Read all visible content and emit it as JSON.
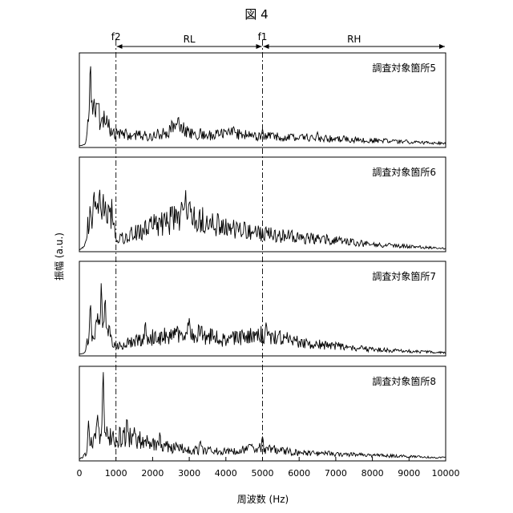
{
  "chart_data": {
    "type": "line",
    "title": "図 4",
    "xlabel": "周波数 (Hz)",
    "ylabel": "振幅 (a.u.)",
    "xlim": [
      0,
      10000
    ],
    "x_ticks": [
      "0",
      "1000",
      "2000",
      "3000",
      "4000",
      "5000",
      "6000",
      "7000",
      "8000",
      "9000",
      "10000"
    ],
    "markers": [
      {
        "label": "f2",
        "x": 1000
      },
      {
        "label": "f1",
        "x": 5000
      }
    ],
    "bands": [
      {
        "label": "RL",
        "range": [
          1000,
          5000
        ]
      },
      {
        "label": "RH",
        "range": [
          5000,
          10000
        ]
      }
    ],
    "panels": [
      {
        "label": "調査対象箇所5",
        "peaks": [
          [
            300,
            0.98
          ],
          [
            400,
            0.6
          ],
          [
            500,
            0.5
          ],
          [
            600,
            0.3
          ],
          [
            2700,
            0.38
          ],
          [
            3300,
            0.22
          ],
          [
            4200,
            0.25
          ],
          [
            5000,
            0.2
          ],
          [
            6500,
            0.18
          ]
        ],
        "envelope": [
          [
            0,
            0.0
          ],
          [
            150,
            0.02
          ],
          [
            300,
            0.4
          ],
          [
            600,
            0.35
          ],
          [
            1000,
            0.15
          ],
          [
            2000,
            0.12
          ],
          [
            2700,
            0.25
          ],
          [
            3200,
            0.12
          ],
          [
            4200,
            0.16
          ],
          [
            5000,
            0.12
          ],
          [
            6500,
            0.1
          ],
          [
            8000,
            0.07
          ],
          [
            10000,
            0.03
          ]
        ]
      },
      {
        "label": "調査対象箇所6",
        "peaks": [
          [
            400,
            0.78
          ],
          [
            550,
            0.72
          ],
          [
            650,
            0.65
          ],
          [
            800,
            0.6
          ],
          [
            2900,
            0.74
          ],
          [
            3000,
            0.6
          ],
          [
            2700,
            0.45
          ],
          [
            4300,
            0.35
          ],
          [
            5000,
            0.25
          ]
        ],
        "envelope": [
          [
            0,
            0.0
          ],
          [
            150,
            0.05
          ],
          [
            300,
            0.5
          ],
          [
            900,
            0.45
          ],
          [
            1000,
            0.12
          ],
          [
            2000,
            0.3
          ],
          [
            2900,
            0.45
          ],
          [
            4000,
            0.28
          ],
          [
            5000,
            0.2
          ],
          [
            7000,
            0.12
          ],
          [
            8000,
            0.07
          ],
          [
            10000,
            0.02
          ]
        ]
      },
      {
        "label": "調査対象箇所7",
        "peaks": [
          [
            300,
            0.6
          ],
          [
            600,
            0.82
          ],
          [
            700,
            0.7
          ],
          [
            500,
            0.5
          ],
          [
            1800,
            0.38
          ],
          [
            3000,
            0.48
          ],
          [
            5100,
            0.42
          ],
          [
            4300,
            0.3
          ]
        ],
        "envelope": [
          [
            0,
            0.0
          ],
          [
            150,
            0.02
          ],
          [
            300,
            0.3
          ],
          [
            700,
            0.35
          ],
          [
            1000,
            0.1
          ],
          [
            1800,
            0.2
          ],
          [
            3000,
            0.28
          ],
          [
            4000,
            0.18
          ],
          [
            5100,
            0.25
          ],
          [
            6000,
            0.15
          ],
          [
            8000,
            0.06
          ],
          [
            10000,
            0.02
          ]
        ]
      },
      {
        "label": "調査対象箇所8",
        "peaks": [
          [
            650,
            1.0
          ],
          [
            500,
            0.55
          ],
          [
            250,
            0.45
          ],
          [
            1300,
            0.5
          ],
          [
            1500,
            0.4
          ],
          [
            2200,
            0.32
          ],
          [
            3300,
            0.22
          ],
          [
            5000,
            0.3
          ],
          [
            6800,
            0.1
          ]
        ],
        "envelope": [
          [
            0,
            0.0
          ],
          [
            150,
            0.05
          ],
          [
            500,
            0.35
          ],
          [
            900,
            0.25
          ],
          [
            1300,
            0.3
          ],
          [
            2000,
            0.18
          ],
          [
            3000,
            0.12
          ],
          [
            4000,
            0.1
          ],
          [
            5000,
            0.14
          ],
          [
            6000,
            0.08
          ],
          [
            8000,
            0.05
          ],
          [
            10000,
            0.02
          ]
        ]
      }
    ],
    "grid": false,
    "legend": "none"
  }
}
